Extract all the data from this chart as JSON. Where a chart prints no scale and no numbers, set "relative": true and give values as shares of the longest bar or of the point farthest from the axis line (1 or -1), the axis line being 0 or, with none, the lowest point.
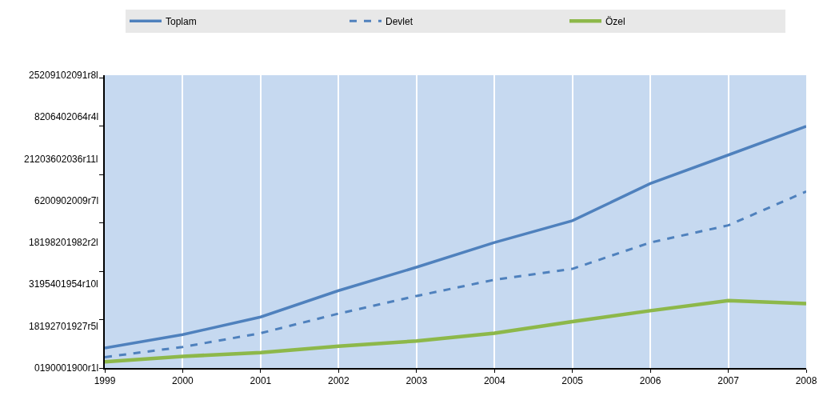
{
  "chart_data": {
    "type": "line",
    "relative": true,
    "x": [
      1999,
      2000,
      2001,
      2002,
      2003,
      2004,
      2005,
      2006,
      2007,
      2008
    ],
    "series": [
      {
        "name": "Toplam",
        "color": "#4f81bd",
        "line_style": "solid",
        "values": [
          0.083,
          0.138,
          0.211,
          0.32,
          0.417,
          0.519,
          0.609,
          0.763,
          0.881,
          1
        ]
      },
      {
        "name": "Devlet",
        "color": "#4f81bd",
        "line_style": "dashed",
        "values": [
          0.045,
          0.087,
          0.144,
          0.225,
          0.298,
          0.365,
          0.41,
          0.519,
          0.59,
          0.73
        ]
      },
      {
        "name": "Özel",
        "color": "#8db84a",
        "line_style": "solid",
        "values": [
          0.026,
          0.048,
          0.064,
          0.09,
          0.112,
          0.144,
          0.192,
          0.237,
          0.279,
          0.266
        ]
      }
    ],
    "xlim": [
      1999,
      2008
    ],
    "xticks": [
      1999,
      2000,
      2001,
      2002,
      2003,
      2004,
      2005,
      2006,
      2007,
      2008
    ],
    "annotations": [
      "0190001900r1l",
      "18192701927r5l",
      "3195401954r10l",
      "18198201982r2l",
      "6200902009r7l",
      "21203602036r11l",
      "8206402064r4l",
      "25209102091r8l"
    ],
    "grid": "x",
    "legend": "top",
    "marker": "none"
  }
}
